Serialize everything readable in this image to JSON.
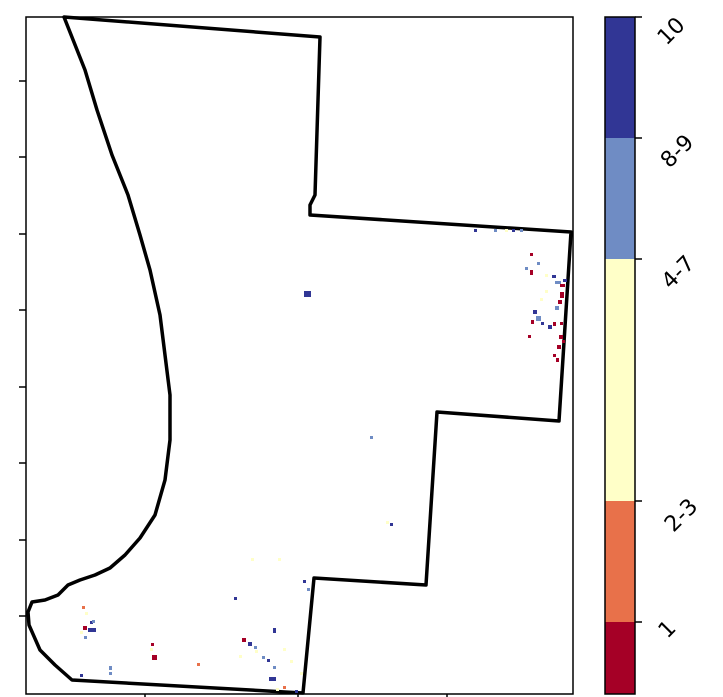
{
  "legend": {
    "classes": [
      {
        "label": "1",
        "color": "#a50026"
      },
      {
        "label": "2-3",
        "color": "#e8714a"
      },
      {
        "label": "4-7",
        "color": "#ffffc8"
      },
      {
        "label": "8-9",
        "color": "#6f8cc4"
      },
      {
        "label": "10",
        "color": "#313695"
      }
    ]
  },
  "colors": {
    "boundary": "#000000",
    "frame": "#000000",
    "background": "#ffffff"
  }
}
